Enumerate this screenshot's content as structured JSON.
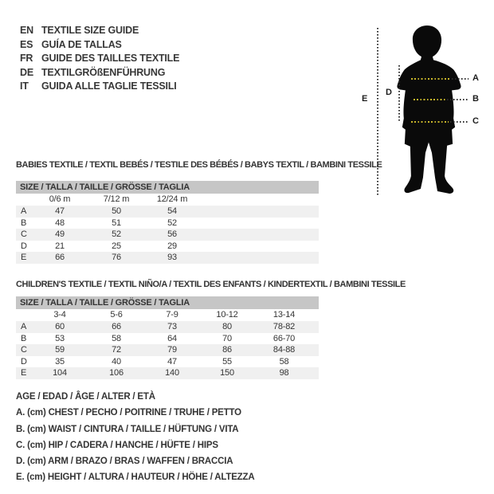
{
  "languages": [
    {
      "code": "EN",
      "label": "TEXTILE SIZE GUIDE"
    },
    {
      "code": "ES",
      "label": "GUÍA DE TALLAS"
    },
    {
      "code": "FR",
      "label": "GUIDE DES TAILLES TEXTILE"
    },
    {
      "code": "DE",
      "label": "TEXTILGRÖßENFÜHRUNG"
    },
    {
      "code": "IT",
      "label": "GUIDA ALLE TAGLIE TESSILI"
    }
  ],
  "figure": {
    "label_a": "A",
    "label_b": "B",
    "label_c": "C",
    "label_d": "D",
    "label_e": "E"
  },
  "babies_table": {
    "title": "BABIES TEXTILE / TEXTIL BEBÉS / TESTILE DES BÉBÉS / BABYS TEXTIL / BAMBINI TESSILE",
    "size_header": "SIZE / TALLA / TAILLE / GRÖSSE / TAGLIA",
    "columns": [
      "0/6 m",
      "7/12 m",
      "12/24 m"
    ],
    "rows": [
      {
        "label": "A",
        "values": [
          "47",
          "50",
          "54"
        ]
      },
      {
        "label": "B",
        "values": [
          "48",
          "51",
          "52"
        ]
      },
      {
        "label": "C",
        "values": [
          "49",
          "52",
          "56"
        ]
      },
      {
        "label": "D",
        "values": [
          "21",
          "25",
          "29"
        ]
      },
      {
        "label": "E",
        "values": [
          "66",
          "76",
          "93"
        ]
      }
    ]
  },
  "children_table": {
    "title": "CHILDREN'S TEXTILE / TEXTIL NIÑO/A / TEXTIL DES ENFANTS / KINDERTEXTIL / BAMBINI TESSILE",
    "size_header": "SIZE / TALLA / TAILLE / GRÖSSE / TAGLIA",
    "columns": [
      "3-4",
      "5-6",
      "7-9",
      "10-12",
      "13-14"
    ],
    "rows": [
      {
        "label": "A",
        "values": [
          "60",
          "66",
          "73",
          "80",
          "78-82"
        ]
      },
      {
        "label": "B",
        "values": [
          "53",
          "58",
          "64",
          "70",
          "66-70"
        ]
      },
      {
        "label": "C",
        "values": [
          "59",
          "72",
          "79",
          "86",
          "84-88"
        ]
      },
      {
        "label": "D",
        "values": [
          "35",
          "40",
          "47",
          "55",
          "58"
        ]
      },
      {
        "label": "E",
        "values": [
          "104",
          "106",
          "140",
          "150",
          "98"
        ]
      }
    ]
  },
  "legend": {
    "age_line": "AGE / EDAD / ÂGE / ALTER / ETÀ",
    "items": [
      "A. (cm) CHEST / PECHO / POITRINE / TRUHE / PETTO",
      "B. (cm) WAIST / CINTURA / TAILLE / HÜFTUNG / VITA",
      "C. (cm) HIP / CADERA / HANCHE / HÜFTE / HIPS",
      "D. (cm) ARM / BRAZO / BRAS / WAFFEN / BRACCIA",
      "E. (cm) HEIGHT / ALTURA / HAUTEUR / HÖHE / ALTEZZA"
    ]
  },
  "colors": {
    "accent_yellow": "#c8b62a",
    "header_gray": "#c6c6c6",
    "row_gray": "#f0f0f0",
    "silhouette_black": "#0a0a0a",
    "text": "#343434"
  }
}
